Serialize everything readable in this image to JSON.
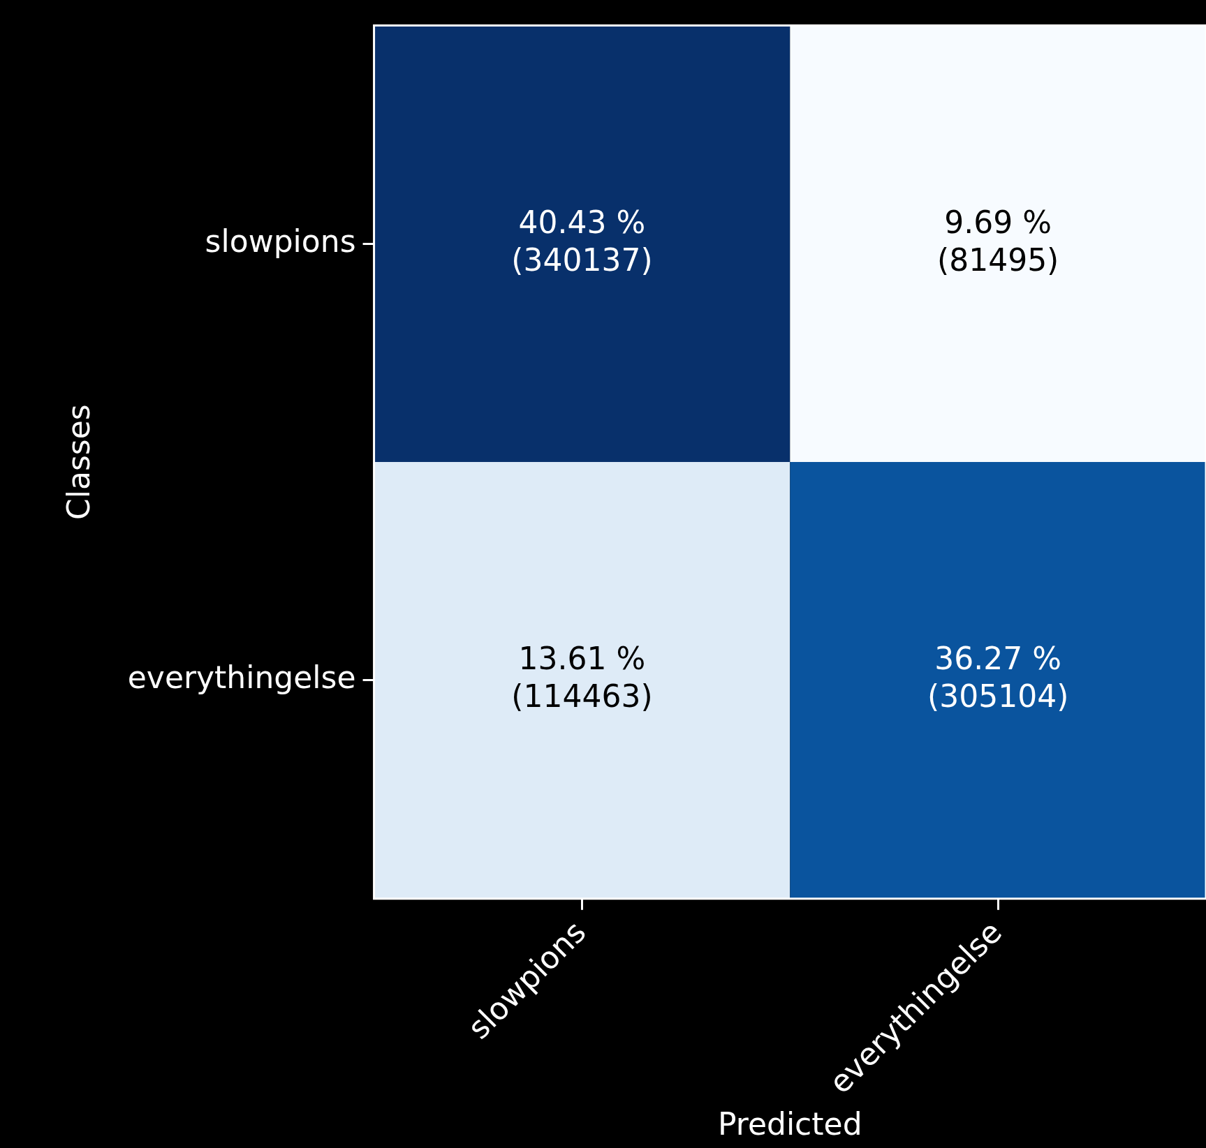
{
  "chart_data": {
    "type": "heatmap",
    "xlabel": "Predicted",
    "ylabel": "Classes",
    "categories": [
      "slowpions",
      "everythingelse"
    ],
    "y_categories": [
      "slowpions",
      "everythingelse"
    ],
    "cells": [
      [
        40.43,
        9.69
      ],
      [
        13.61,
        36.27
      ]
    ],
    "cell_labels": [
      [
        "40.43 %",
        "9.69 %"
      ],
      [
        "13.61 %",
        "36.27 %"
      ]
    ],
    "annotations": [
      "(340137)",
      "(81495)",
      "(114463)",
      "(305104)"
    ],
    "grid": false,
    "legend": false
  }
}
